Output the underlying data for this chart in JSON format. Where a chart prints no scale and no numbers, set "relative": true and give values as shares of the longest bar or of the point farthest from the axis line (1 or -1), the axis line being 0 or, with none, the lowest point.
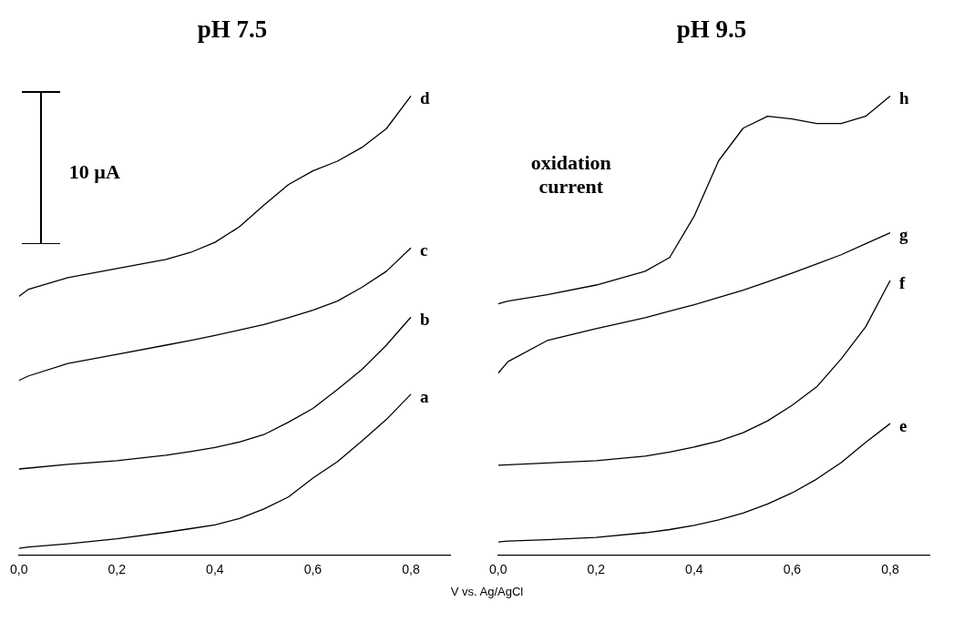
{
  "chart_data": [
    {
      "type": "line",
      "title": "pH 7.5",
      "xlabel": "V vs. Ag/AgCl",
      "relative": true,
      "x": [
        0,
        0.02,
        0.1,
        0.2,
        0.3,
        0.35,
        0.4,
        0.45,
        0.5,
        0.55,
        0.6,
        0.65,
        0.7,
        0.75,
        0.8
      ],
      "xlim": [
        0,
        0.88
      ],
      "xticks": [
        {
          "value": 0,
          "label": "0,0"
        },
        {
          "value": 0.2,
          "label": "0,2"
        },
        {
          "value": 0.4,
          "label": "0,4"
        },
        {
          "value": 0.6,
          "label": "0,6"
        },
        {
          "value": 0.8,
          "label": "0,8"
        }
      ],
      "grid": false,
      "legend": false,
      "marker": "none",
      "line_style": "solid",
      "annotations": [
        "10 µA"
      ],
      "series": [
        {
          "name": "a",
          "color": "#000000",
          "values": [
            0.014,
            0.017,
            0.024,
            0.035,
            0.049,
            0.057,
            0.065,
            0.079,
            0.1,
            0.126,
            0.167,
            0.203,
            0.248,
            0.295,
            0.35
          ]
        },
        {
          "name": "b",
          "color": "#000000",
          "values": [
            0.187,
            0.189,
            0.197,
            0.205,
            0.217,
            0.225,
            0.234,
            0.246,
            0.262,
            0.289,
            0.319,
            0.36,
            0.404,
            0.457,
            0.518
          ]
        },
        {
          "name": "c",
          "color": "#000000",
          "values": [
            0.38,
            0.39,
            0.417,
            0.437,
            0.457,
            0.467,
            0.478,
            0.49,
            0.502,
            0.517,
            0.533,
            0.553,
            0.583,
            0.618,
            0.669
          ]
        },
        {
          "name": "d",
          "color": "#000000",
          "values": [
            0.563,
            0.579,
            0.604,
            0.624,
            0.644,
            0.659,
            0.681,
            0.715,
            0.762,
            0.807,
            0.837,
            0.858,
            0.888,
            0.929,
            1
          ]
        }
      ]
    },
    {
      "type": "line",
      "title": "pH 9.5",
      "relative": true,
      "x": [
        0,
        0.02,
        0.1,
        0.2,
        0.3,
        0.35,
        0.4,
        0.45,
        0.5,
        0.55,
        0.6,
        0.65,
        0.7,
        0.75,
        0.8
      ],
      "xlim": [
        0,
        0.88
      ],
      "xticks": [
        {
          "value": 0,
          "label": "0,0"
        },
        {
          "value": 0.2,
          "label": "0,2"
        },
        {
          "value": 0.4,
          "label": "0,4"
        },
        {
          "value": 0.6,
          "label": "0,6"
        },
        {
          "value": 0.8,
          "label": "0,8"
        }
      ],
      "grid": false,
      "legend": false,
      "marker": "none",
      "line_style": "solid",
      "annotations": [
        "oxidation current"
      ],
      "series": [
        {
          "name": "e",
          "color": "#000000",
          "values": [
            0.028,
            0.03,
            0.033,
            0.038,
            0.048,
            0.055,
            0.064,
            0.076,
            0.091,
            0.111,
            0.135,
            0.165,
            0.201,
            0.245,
            0.286
          ]
        },
        {
          "name": "f",
          "color": "#000000",
          "values": [
            0.195,
            0.196,
            0.2,
            0.205,
            0.215,
            0.224,
            0.235,
            0.248,
            0.266,
            0.292,
            0.326,
            0.366,
            0.427,
            0.497,
            0.598
          ]
        },
        {
          "name": "g",
          "color": "#000000",
          "values": [
            0.396,
            0.421,
            0.467,
            0.493,
            0.517,
            0.531,
            0.545,
            0.561,
            0.577,
            0.595,
            0.614,
            0.634,
            0.654,
            0.678,
            0.702
          ]
        },
        {
          "name": "h",
          "color": "#000000",
          "values": [
            0.547,
            0.553,
            0.567,
            0.588,
            0.618,
            0.648,
            0.738,
            0.859,
            0.93,
            0.956,
            0.95,
            0.94,
            0.94,
            0.956,
            1
          ]
        }
      ]
    }
  ]
}
